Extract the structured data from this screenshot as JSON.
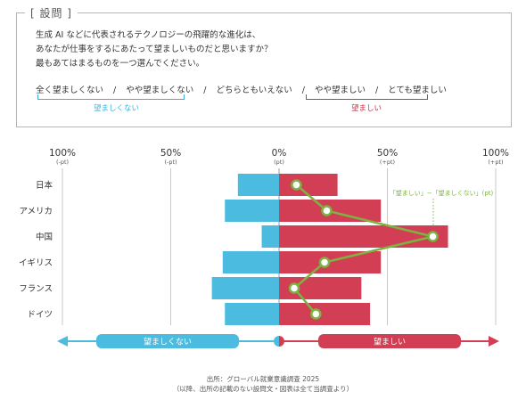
{
  "question": {
    "tag": "[ 設問 ]",
    "lines": [
      "生成 AI などに代表されるテクノロジーの飛躍的な進化は、",
      "あなたが仕事をするにあたって望ましいものだと思いますか？",
      "最もあてはまるものを一つ選んでください。"
    ],
    "scale": [
      "全く望ましくない",
      "やや望ましくない",
      "どちらともいえない",
      "やや望ましい",
      "とても望ましい"
    ],
    "scale_sep": "/",
    "group_negative": "望ましくない",
    "group_positive": "望ましい"
  },
  "colors": {
    "negative": "#4bbbe0",
    "positive": "#d23f55",
    "line": "#7cb342",
    "grid": "#c8c8c8"
  },
  "chart_data": {
    "type": "bar",
    "orientation": "horizontal-diverging",
    "axis_ticks": [
      {
        "value": -100,
        "label": "100%",
        "sub": "(-pt)"
      },
      {
        "value": -50,
        "label": "50%",
        "sub": "(-pt)"
      },
      {
        "value": 0,
        "label": "0%",
        "sub": "(pt)"
      },
      {
        "value": 50,
        "label": "50%",
        "sub": "(+pt)"
      },
      {
        "value": 100,
        "label": "100%",
        "sub": "(+pt)"
      }
    ],
    "xlim": [
      -100,
      100
    ],
    "categories": [
      "日本",
      "アメリカ",
      "中国",
      "イギリス",
      "フランス",
      "ドイツ"
    ],
    "series": [
      {
        "name": "望ましくない",
        "values": [
          -19,
          -25,
          -8,
          -26,
          -31,
          -25
        ]
      },
      {
        "name": "望ましい",
        "values": [
          27,
          47,
          78,
          47,
          38,
          42
        ]
      },
      {
        "name": "「望ましい」−「望ましくない」(pt)",
        "values": [
          8,
          22,
          71,
          21,
          7,
          17
        ]
      }
    ],
    "annotation": "「望ましい」−「望ましくない」(pt)",
    "bottom_arrow": {
      "negative": "望ましくない",
      "positive": "望ましい"
    }
  },
  "source": {
    "line1": "出所：グローバル就業意識調査 2025",
    "line2": "（以降、出所の記載のない設問文・図表は全て当調査より）"
  }
}
